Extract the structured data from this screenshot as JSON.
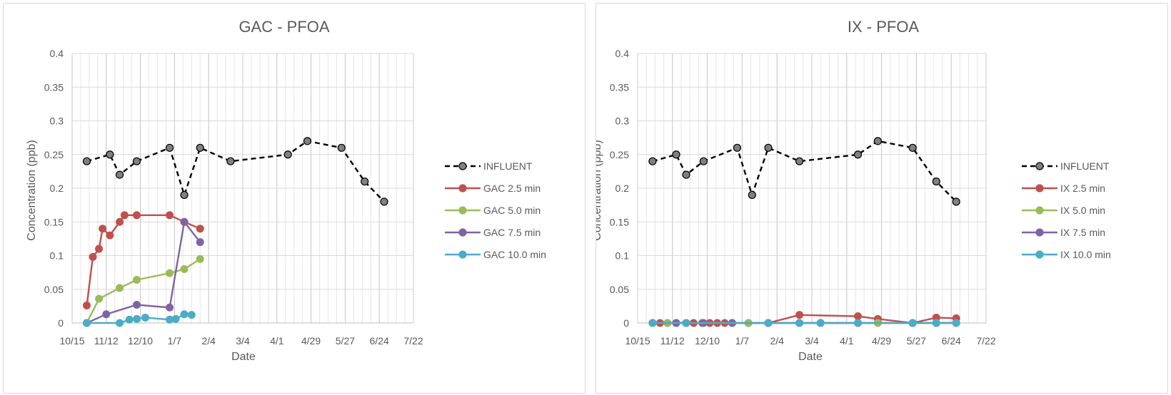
{
  "charts": [
    {
      "title": "GAC - PFOA",
      "xlabel": "Date",
      "ylabel": "Concentration (ppb)",
      "x_ticks": [
        "10/15",
        "11/12",
        "12/10",
        "1/7",
        "2/4",
        "3/4",
        "4/1",
        "4/29",
        "5/27",
        "6/24",
        "7/22"
      ],
      "y_ticks": [
        "0",
        "0.05",
        "0.1",
        "0.15",
        "0.2",
        "0.25",
        "0.3",
        "0.35",
        "0.4"
      ],
      "legend": [
        "INFLUENT",
        "GAC 2.5 min",
        "GAC 5.0 min",
        "GAC 7.5 min",
        "GAC 10.0 min"
      ]
    },
    {
      "title": "IX - PFOA",
      "xlabel": "Date",
      "ylabel": "Concentration (ppb)",
      "x_ticks": [
        "10/15",
        "11/12",
        "12/10",
        "1/7",
        "2/4",
        "3/4",
        "4/1",
        "4/29",
        "5/27",
        "6/24",
        "7/22"
      ],
      "y_ticks": [
        "0",
        "0.05",
        "0.1",
        "0.15",
        "0.2",
        "0.25",
        "0.3",
        "0.35",
        "0.4"
      ],
      "legend": [
        "INFLUENT",
        "IX 2.5 min",
        "IX 5.0 min",
        "IX 7.5 min",
        "IX 10.0 min"
      ]
    }
  ],
  "chart_data": [
    {
      "type": "line",
      "title": "GAC - PFOA",
      "xlabel": "Date",
      "ylabel": "Concentration (ppb)",
      "x_range": [
        "10/15",
        "7/22"
      ],
      "ylim": [
        0,
        0.4
      ],
      "grid": true,
      "legend_position": "right",
      "series": [
        {
          "name": "INFLUENT",
          "color": "#000000",
          "dashed": true,
          "marker_fill": "#808080",
          "x": [
            "10/27",
            "11/15",
            "11/23",
            "12/7",
            "1/3",
            "1/15",
            "1/28",
            "2/22",
            "4/10",
            "4/26",
            "5/24",
            "6/12",
            "6/28"
          ],
          "y": [
            0.24,
            0.25,
            0.22,
            0.24,
            0.26,
            0.19,
            0.26,
            0.24,
            0.25,
            0.27,
            0.26,
            0.21,
            0.18
          ]
        },
        {
          "name": "GAC 2.5 min",
          "color": "#c0504d",
          "x": [
            "10/27",
            "11/1",
            "11/6",
            "11/9",
            "11/15",
            "11/23",
            "11/27",
            "12/7",
            "1/3",
            "1/15",
            "1/28"
          ],
          "y": [
            0.026,
            0.098,
            0.11,
            0.14,
            0.13,
            0.15,
            0.16,
            0.16,
            0.16,
            0.15,
            0.14
          ]
        },
        {
          "name": "GAC 5.0 min",
          "color": "#9bbb59",
          "x": [
            "10/27",
            "11/6",
            "11/23",
            "12/7",
            "1/3",
            "1/15",
            "1/28"
          ],
          "y": [
            0,
            0.036,
            0.052,
            0.064,
            0.074,
            0.08,
            0.095
          ]
        },
        {
          "name": "GAC 7.5 min",
          "color": "#8064a2",
          "x": [
            "10/27",
            "11/12",
            "12/7",
            "1/3",
            "1/15",
            "1/28"
          ],
          "y": [
            0,
            0.013,
            0.027,
            0.023,
            0.15,
            0.12
          ]
        },
        {
          "name": "GAC 10.0 min",
          "color": "#4bacc6",
          "x": [
            "10/27",
            "11/23",
            "12/1",
            "12/7",
            "12/14",
            "1/3",
            "1/8",
            "1/15",
            "1/21"
          ],
          "y": [
            0,
            0,
            0.005,
            0.006,
            0.008,
            0.005,
            0.006,
            0.013,
            0.012
          ]
        }
      ]
    },
    {
      "type": "line",
      "title": "IX - PFOA",
      "xlabel": "Date",
      "ylabel": "Concentration (ppb)",
      "x_range": [
        "10/15",
        "7/22"
      ],
      "ylim": [
        0,
        0.4
      ],
      "grid": true,
      "legend_position": "right",
      "series": [
        {
          "name": "INFLUENT",
          "color": "#000000",
          "dashed": true,
          "marker_fill": "#808080",
          "x": [
            "10/27",
            "11/15",
            "11/23",
            "12/7",
            "1/3",
            "1/15",
            "1/28",
            "2/22",
            "4/10",
            "4/26",
            "5/24",
            "6/12",
            "6/28"
          ],
          "y": [
            0.24,
            0.25,
            0.22,
            0.24,
            0.26,
            0.19,
            0.26,
            0.24,
            0.25,
            0.27,
            0.26,
            0.21,
            0.18
          ]
        },
        {
          "name": "IX 2.5 min",
          "color": "#c0504d",
          "x": [
            "10/27",
            "11/2",
            "11/8",
            "11/15",
            "11/23",
            "11/29",
            "12/6",
            "12/12",
            "12/18",
            "12/24",
            "12/30",
            "1/12",
            "1/28",
            "2/22",
            "4/10",
            "4/26",
            "5/24",
            "6/12",
            "6/28"
          ],
          "y": [
            0,
            0,
            0,
            0,
            0,
            0,
            0,
            0,
            0,
            0,
            0,
            0,
            0,
            0.012,
            0.01,
            0.006,
            0,
            0.008,
            0.007
          ]
        },
        {
          "name": "IX 5.0 min",
          "color": "#9bbb59",
          "x": [
            "10/27",
            "11/8",
            "11/23",
            "12/30",
            "1/12",
            "2/22",
            "3/11",
            "4/10",
            "4/26",
            "5/24",
            "6/12",
            "6/28"
          ],
          "y": [
            0,
            0,
            0,
            0,
            0,
            0,
            0,
            0,
            0,
            0,
            0,
            0
          ]
        },
        {
          "name": "IX 7.5 min",
          "color": "#8064a2",
          "x": [
            "10/27",
            "11/15",
            "11/23",
            "12/7",
            "12/30",
            "1/28",
            "2/22",
            "3/11",
            "4/10",
            "5/24",
            "6/12",
            "6/28"
          ],
          "y": [
            0,
            0,
            0,
            0,
            0,
            0,
            0,
            0,
            0,
            0,
            0,
            0
          ]
        },
        {
          "name": "IX 10.0 min",
          "color": "#4bacc6",
          "x": [
            "10/27",
            "11/23",
            "1/28",
            "2/22",
            "3/11",
            "4/10",
            "5/24",
            "6/12",
            "6/28"
          ],
          "y": [
            0,
            0,
            0,
            0,
            0,
            0,
            0,
            0,
            0
          ]
        }
      ]
    }
  ]
}
